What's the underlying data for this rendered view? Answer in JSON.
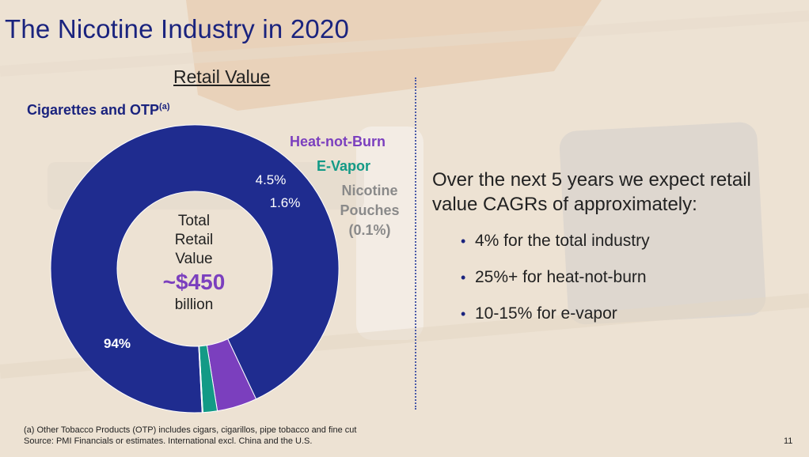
{
  "title": "The Nicotine Industry in 2020",
  "retail_heading": "Retail Value",
  "chart_data": {
    "type": "pie",
    "donut": true,
    "segments": [
      {
        "name": "Cigarettes and OTP",
        "footnote_mark": "(a)",
        "value": 94,
        "label": "94%",
        "color": "#1f2c8f"
      },
      {
        "name": "Heat-not-Burn",
        "value": 4.5,
        "label": "4.5%",
        "color": "#7b3fbe"
      },
      {
        "name": "E-Vapor",
        "value": 1.6,
        "label": "1.6%",
        "color": "#139a86"
      },
      {
        "name": "Nicotine Pouches",
        "value": 0.1,
        "label": "(0.1%)",
        "color": "#8a8a8a"
      }
    ],
    "center": {
      "line1": "Total",
      "line2": "Retail",
      "line3": "Value",
      "value": "~$450",
      "unit": "billion"
    }
  },
  "legend": {
    "cigarettes": "Cigarettes and OTP",
    "cigarettes_mark": "(a)",
    "hnb": "Heat-not-Burn",
    "evapor": "E-Vapor",
    "pouches_line1": "Nicotine",
    "pouches_line2": "Pouches",
    "pouches_pct": "(0.1%)"
  },
  "outlook": {
    "heading": "Over the next 5 years we expect retail value CAGRs of approximately:",
    "bullets": [
      "4% for the total industry",
      "25%+ for heat-not-burn",
      "10-15% for e-vapor"
    ]
  },
  "footnote": {
    "line1": "(a)  Other Tobacco Products (OTP) includes cigars, cigarillos, pipe tobacco and fine cut",
    "line2": "Source: PMI Financials or estimates. International excl. China and the U.S."
  },
  "page_number": "11",
  "colors": {
    "navy": "#1a237e",
    "purple": "#7b3fbe",
    "teal": "#139a86",
    "grey": "#8a8a8a"
  }
}
